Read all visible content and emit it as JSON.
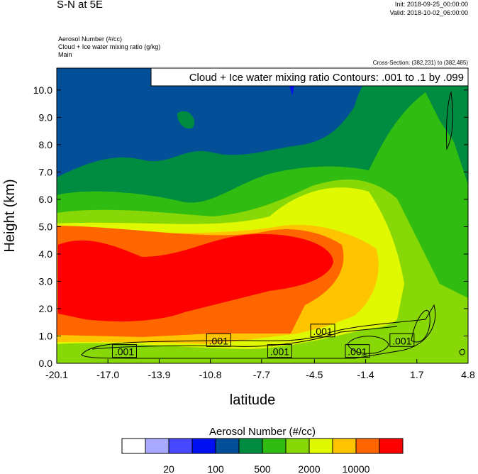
{
  "header": {
    "title": "S-N at 5E",
    "init": "Init: 2018-09-25_00:00:00",
    "valid": "Valid: 2018-10-02_06:00:00",
    "fields": [
      "Aerosol Number   (#/cc)",
      "Cloud + Ice water mixing ratio   (g/kg)",
      "Main"
    ],
    "cross_section": "Cross-Section: (382,231) to (382,485)"
  },
  "chart_data": {
    "type": "heatmap",
    "title": "Cloud + Ice water mixing ratio Contours: .001 to .1 by .099",
    "xlabel": "latitude",
    "ylabel": "Height (km)",
    "xlim": [
      -20.1,
      4.8
    ],
    "ylim": [
      0,
      10.8
    ],
    "xticks": [
      "-20.1",
      "-17.0",
      "-13.9",
      "-10.8",
      "-7.7",
      "-4.5",
      "-1.4",
      "1.7",
      "4.8"
    ],
    "xtick_values": [
      -20.1,
      -17.0,
      -13.9,
      -10.8,
      -7.7,
      -4.5,
      -1.4,
      1.7,
      4.8
    ],
    "yticks": [
      "0.0",
      "1.0",
      "2.0",
      "3.0",
      "4.0",
      "5.0",
      "6.0",
      "7.0",
      "8.0",
      "9.0",
      "10.0"
    ],
    "ytick_values": [
      0,
      1,
      2,
      3,
      4,
      5,
      6,
      7,
      8,
      9,
      10
    ],
    "contour_labels": [
      {
        "text": ".001",
        "x": -16.0,
        "y": 0.45
      },
      {
        "text": ".001",
        "x": -10.3,
        "y": 0.85
      },
      {
        "text": ".001",
        "x": -6.6,
        "y": 0.45
      },
      {
        "text": ".001",
        "x": -4.0,
        "y": 1.2
      },
      {
        "text": ".001",
        "x": -1.9,
        "y": 0.45
      },
      {
        "text": ".001",
        "x": 0.8,
        "y": 0.85
      }
    ],
    "colorbar": {
      "title": "Aerosol Number  (#/cc)",
      "colors": [
        "#ffffff",
        "#a8a8ff",
        "#4848ff",
        "#0010f0",
        "#045098",
        "#008c40",
        "#30bc10",
        "#88d808",
        "#e0f800",
        "#ffc400",
        "#ff6600",
        "#ff0000"
      ],
      "labels": [
        "20",
        "100",
        "500",
        "2000",
        "10000"
      ]
    }
  }
}
